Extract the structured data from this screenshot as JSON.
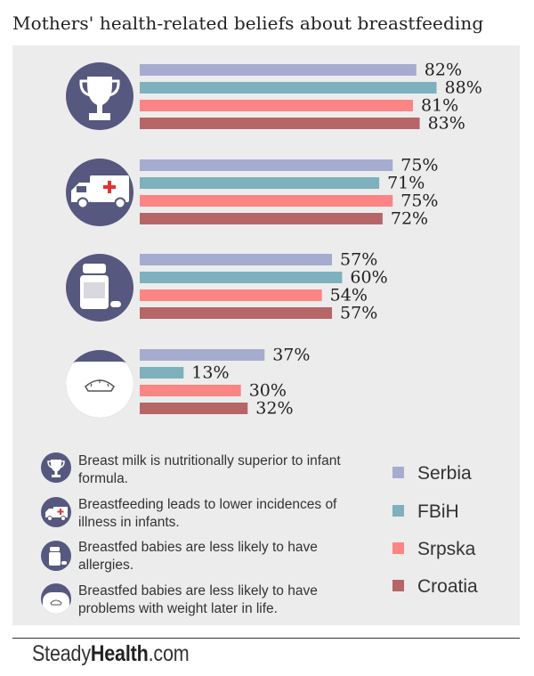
{
  "title": "Mothers' health-related beliefs about breastfeeding",
  "colors": {
    "panel": "#ececec",
    "icon_circle": "#56587f",
    "Serbia": "#a6accf",
    "FBiH": "#7eb0bd",
    "Srpska": "#fa8584",
    "Croatia": "#b66667"
  },
  "chart_data": {
    "type": "bar",
    "orientation": "horizontal",
    "categories": [
      "Breast milk is nutritionally superior to infant formula.",
      "Breastfeeding leads to lower incidences of illness in infants.",
      "Breastfed babies are less likely to have allergies.",
      "Breastfed babies are less likely to have problems with weight later in life."
    ],
    "category_icons": [
      "trophy-icon",
      "ambulance-icon",
      "pill-bottle-icon",
      "scale-icon"
    ],
    "series": [
      {
        "name": "Serbia",
        "values": [
          82,
          75,
          57,
          37
        ]
      },
      {
        "name": "FBiH",
        "values": [
          88,
          71,
          60,
          13
        ]
      },
      {
        "name": "Srpska",
        "values": [
          81,
          75,
          54,
          30
        ]
      },
      {
        "name": "Croatia",
        "values": [
          83,
          72,
          57,
          32
        ]
      }
    ],
    "value_suffix": "%",
    "grid": false,
    "legend": "bottom-right"
  },
  "legend": {
    "items": [
      "Breast milk is nutritionally superior to infant formula.",
      "Breastfeeding leads to lower incidences of illness in infants.",
      "Breastfed babies are less likely to have allergies.",
      "Breastfed babies are less likely to have problems with weight later in life."
    ],
    "series": [
      "Serbia",
      "FBiH",
      "Srpska",
      "Croatia"
    ]
  },
  "brand": {
    "part1": "Steady",
    "part2": "Health",
    "part3": ".com"
  }
}
